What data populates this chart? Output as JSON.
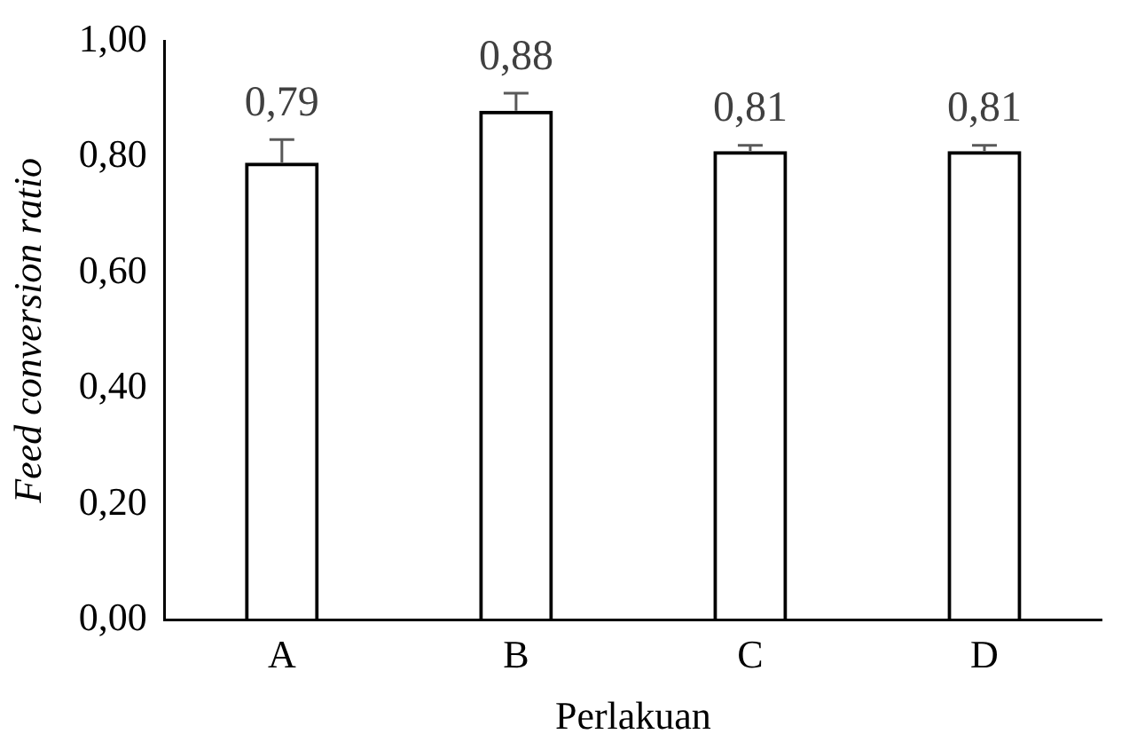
{
  "chart_data": {
    "type": "bar",
    "xlabel": "Perlakuan",
    "ylabel": "Feed conversion ratio",
    "categories": [
      "A",
      "B",
      "C",
      "D"
    ],
    "values": [
      0.79,
      0.88,
      0.81,
      0.81
    ],
    "errors": [
      [
        0.79,
        0.83
      ],
      [
        0.88,
        0.91
      ],
      [
        0.81,
        0.82
      ],
      [
        0.81,
        0.82
      ]
    ],
    "value_labels": [
      "0,79",
      "0,88",
      "0,81",
      "0,81"
    ],
    "color": "#000000",
    "ylim": [
      0,
      1
    ],
    "yticks": [
      {
        "value": 0,
        "label": "0,00"
      },
      {
        "value": 0.2,
        "label": "0,20"
      },
      {
        "value": 0.4,
        "label": "0,40"
      },
      {
        "value": 0.6,
        "label": "0,60"
      },
      {
        "value": 0.8,
        "label": "0,80"
      },
      {
        "value": 1,
        "label": "1,00"
      }
    ],
    "grid": false,
    "legend": false
  }
}
